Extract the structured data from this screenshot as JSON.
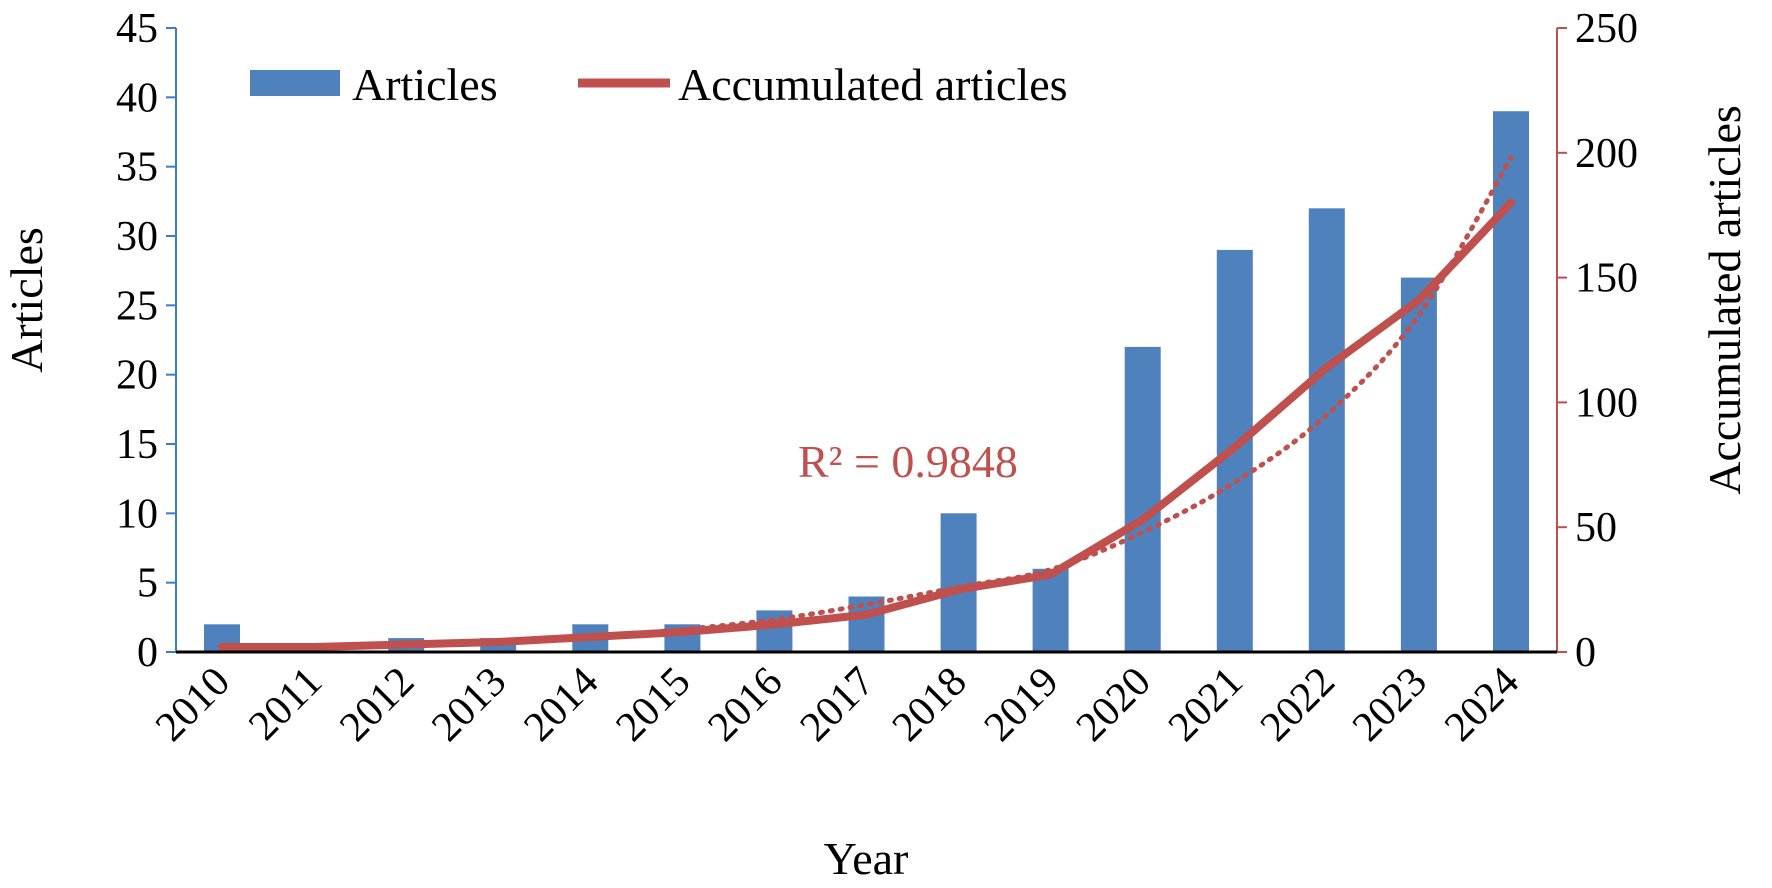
{
  "chart_data": {
    "type": "bar",
    "categories": [
      "2010",
      "2011",
      "2012",
      "2013",
      "2014",
      "2015",
      "2016",
      "2017",
      "2018",
      "2019",
      "2020",
      "2021",
      "2022",
      "2023",
      "2024"
    ],
    "series": [
      {
        "name": "Articles",
        "type": "bar",
        "axis": "left",
        "color": "#4F81BD",
        "values": [
          2,
          0,
          1,
          1,
          2,
          2,
          3,
          4,
          10,
          6,
          22,
          29,
          32,
          27,
          39
        ]
      },
      {
        "name": "Accumulated articles",
        "type": "line",
        "axis": "right",
        "color": "#C0504D",
        "values": [
          2,
          2,
          3,
          4,
          6,
          8,
          11,
          15,
          25,
          31,
          53,
          82,
          114,
          141,
          180
        ]
      }
    ],
    "trendline": {
      "type": "polynomial",
      "style": "dotted",
      "color": "#C0504D",
      "values": [
        2,
        2,
        3,
        4,
        6,
        9,
        13,
        19,
        26,
        33,
        48,
        68,
        95,
        135,
        198
      ],
      "annotation": "R² = 0.9848"
    },
    "xlabel": "Year",
    "ylabel": "Articles",
    "ylabel_right": "Accumulated articles",
    "ylim": [
      0,
      45
    ],
    "yticks": [
      0,
      5,
      10,
      15,
      20,
      25,
      30,
      35,
      40,
      45
    ],
    "ylim_right": [
      0,
      250
    ],
    "yticks_right": [
      0,
      50,
      100,
      150,
      200,
      250
    ],
    "grid": false,
    "legend_placement": "top-left",
    "left_axis_color": "#3C7FC0",
    "right_axis_color": "#C0504D"
  }
}
